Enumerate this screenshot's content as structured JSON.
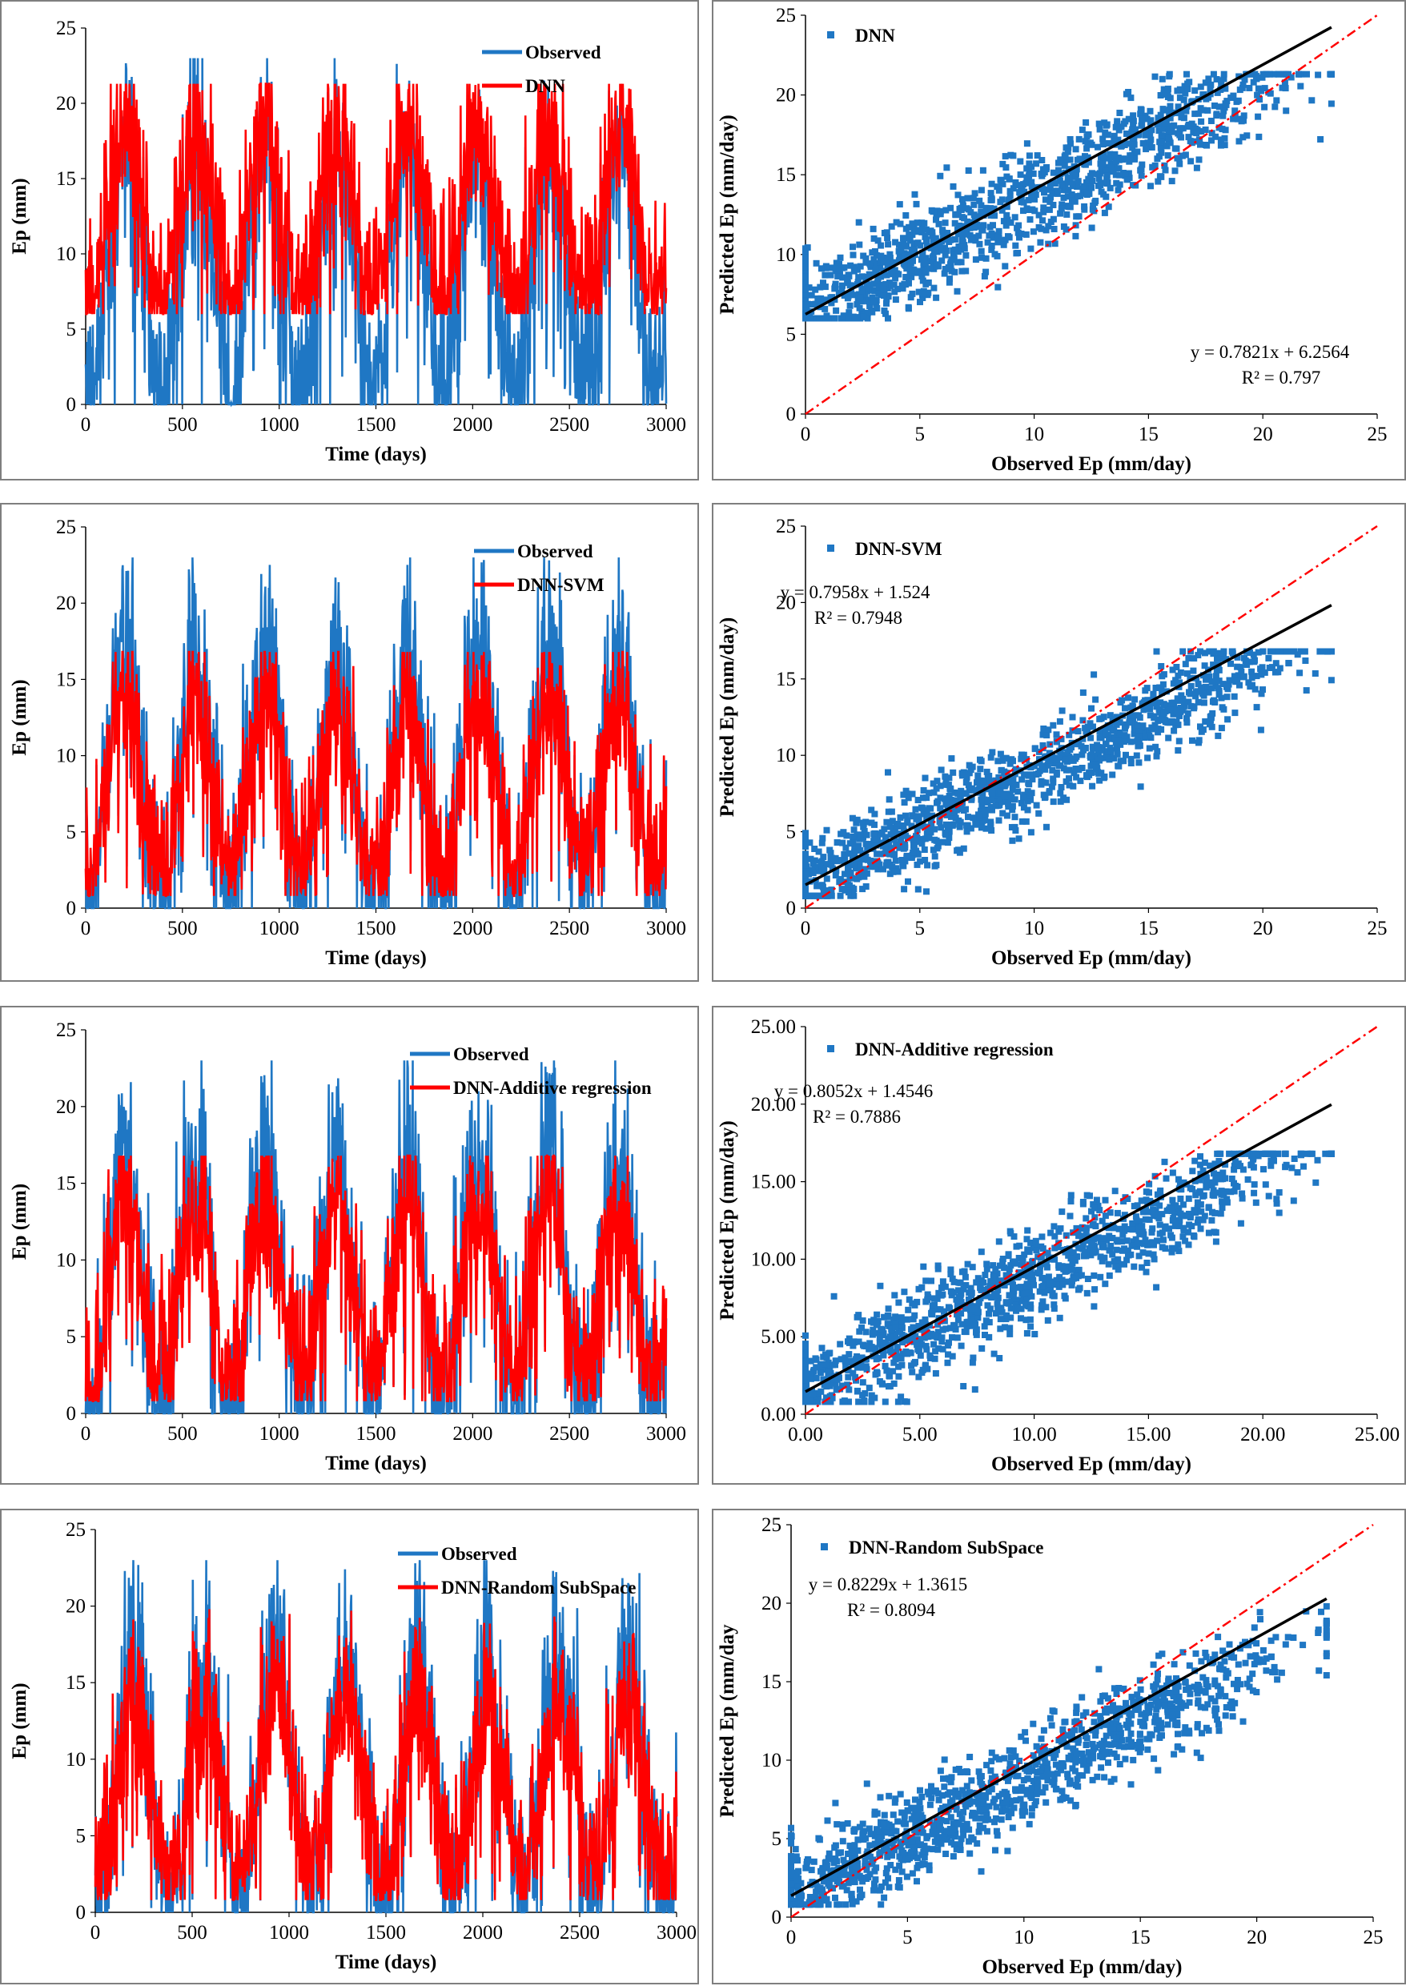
{
  "colors": {
    "observed": "#1F77C4",
    "model": "#FF0000",
    "scatter": "#1F77C4",
    "fit": "#000000",
    "identity": "#FF0000",
    "frame": "#7F7F7F"
  },
  "chart_data": [
    {
      "id": "ts1",
      "type": "line",
      "title": "",
      "xlabel": "Time (days)",
      "ylabel": "Ep (mm)",
      "xlim": [
        0,
        3000
      ],
      "ylim": [
        0,
        25
      ],
      "xticks": [
        "0",
        "500",
        "1000",
        "1500",
        "2000",
        "2500",
        "3000"
      ],
      "yticks": [
        "0",
        "5",
        "10",
        "15",
        "20",
        "25"
      ],
      "legend": [
        "Observed",
        "DNN"
      ],
      "legend_position": "top-right",
      "series": [
        {
          "name": "Observed",
          "model": "observed",
          "points": 1300
        },
        {
          "name": "DNN",
          "model": "dnn",
          "points": 1300
        }
      ]
    },
    {
      "id": "sc1",
      "type": "scatter",
      "title": "",
      "xlabel": "Observed Ep (mm/day)",
      "ylabel": "Predicted Ep (mm/day)",
      "xlim": [
        0,
        25
      ],
      "ylim": [
        0,
        25
      ],
      "xticks": [
        "0",
        "5",
        "10",
        "15",
        "20",
        "25"
      ],
      "yticks": [
        "0",
        "5",
        "10",
        "15",
        "20",
        "25"
      ],
      "legend": [
        "DNN"
      ],
      "legend_position": "top-left",
      "fit": {
        "slope": 0.7821,
        "intercept": 6.2564,
        "x_range": [
          0,
          23
        ]
      },
      "equation": "y = 0.7821x + 6.2564",
      "r2": "R² = 0.797",
      "model": "dnn"
    },
    {
      "id": "ts2",
      "type": "line",
      "title": "",
      "xlabel": "Time (days)",
      "ylabel": "Ep (mm)",
      "xlim": [
        0,
        3000
      ],
      "ylim": [
        0,
        25
      ],
      "xticks": [
        "0",
        "500",
        "1000",
        "1500",
        "2000",
        "2500",
        "3000"
      ],
      "yticks": [
        "0",
        "5",
        "10",
        "15",
        "20",
        "25"
      ],
      "legend": [
        "Observed",
        "DNN-SVM"
      ],
      "legend_position": "top-right",
      "series": [
        {
          "name": "Observed",
          "model": "observed",
          "points": 1300
        },
        {
          "name": "DNN-SVM",
          "model": "svm",
          "points": 1300
        }
      ]
    },
    {
      "id": "sc2",
      "type": "scatter",
      "title": "",
      "xlabel": "Observed Ep (mm/day)",
      "ylabel": "Predicted Ep (mm/day)",
      "xlim": [
        0,
        25
      ],
      "ylim": [
        0,
        25
      ],
      "xticks": [
        "0",
        "5",
        "10",
        "15",
        "20",
        "25"
      ],
      "yticks": [
        "0",
        "5",
        "10",
        "15",
        "20",
        "25"
      ],
      "legend": [
        "DNN-SVM"
      ],
      "legend_position": "top-left",
      "fit": {
        "slope": 0.7958,
        "intercept": 1.524,
        "x_range": [
          0,
          23
        ]
      },
      "equation": "y = 0.7958x + 1.524",
      "r2": "R² = 0.7948",
      "model": "svm"
    },
    {
      "id": "ts3",
      "type": "line",
      "title": "",
      "xlabel": "Time (days)",
      "ylabel": "Ep (mm)",
      "xlim": [
        0,
        3000
      ],
      "ylim": [
        0,
        25
      ],
      "xticks": [
        "0",
        "500",
        "1000",
        "1500",
        "2000",
        "2500",
        "3000"
      ],
      "yticks": [
        "0",
        "5",
        "10",
        "15",
        "20",
        "25"
      ],
      "legend": [
        "Observed",
        "DNN-Additive regression"
      ],
      "legend_position": "top-right",
      "series": [
        {
          "name": "Observed",
          "model": "observed",
          "points": 1300
        },
        {
          "name": "DNN-Additive regression",
          "model": "add",
          "points": 1300
        }
      ]
    },
    {
      "id": "sc3",
      "type": "scatter",
      "title": "",
      "xlabel": "Observed Ep (mm/day)",
      "ylabel": "Predicted Ep (mm/day)",
      "xlim": [
        0,
        25
      ],
      "ylim": [
        0,
        25
      ],
      "xticks": [
        "0.00",
        "5.00",
        "10.00",
        "15.00",
        "20.00",
        "25.00"
      ],
      "yticks": [
        "0.00",
        "5.00",
        "10.00",
        "15.00",
        "20.00",
        "25.00"
      ],
      "legend": [
        "DNN-Additive regression"
      ],
      "legend_position": "top-left",
      "fit": {
        "slope": 0.8052,
        "intercept": 1.4546,
        "x_range": [
          0,
          23
        ]
      },
      "equation": "y = 0.8052x + 1.4546",
      "r2": "R² = 0.7886",
      "model": "add"
    },
    {
      "id": "ts4",
      "type": "line",
      "title": "",
      "xlabel": "Time (days)",
      "ylabel": "Ep (mm)",
      "xlim": [
        0,
        3000
      ],
      "ylim": [
        0,
        25
      ],
      "xticks": [
        "0",
        "500",
        "1000",
        "1500",
        "2000",
        "2500",
        "3000"
      ],
      "yticks": [
        "0",
        "5",
        "10",
        "15",
        "20",
        "25"
      ],
      "legend": [
        "Observed",
        "DNN-Random SubSpace"
      ],
      "legend_position": "top-right",
      "series": [
        {
          "name": "Observed",
          "model": "observed",
          "points": 1300
        },
        {
          "name": "DNN-Random SubSpace",
          "model": "rss",
          "points": 1300
        }
      ]
    },
    {
      "id": "sc4",
      "type": "scatter",
      "title": "",
      "xlabel": "Observed Ep (mm/day)",
      "ylabel": "Predicted Ep (mm/day",
      "xlim": [
        0,
        25
      ],
      "ylim": [
        0,
        25
      ],
      "xticks": [
        "0",
        "5",
        "10",
        "15",
        "20",
        "25"
      ],
      "yticks": [
        "0",
        "5",
        "10",
        "15",
        "20",
        "25"
      ],
      "legend": [
        "DNN-Random SubSpace"
      ],
      "legend_position": "top-left",
      "fit": {
        "slope": 0.8229,
        "intercept": 1.3615,
        "x_range": [
          0,
          23
        ]
      },
      "equation": "y = 0.8229x + 1.3615",
      "r2": "R² = 0.8094",
      "model": "rss"
    }
  ]
}
